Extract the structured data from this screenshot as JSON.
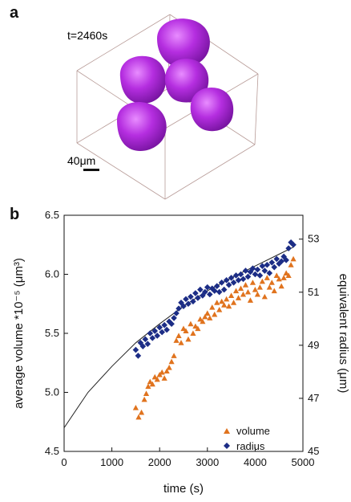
{
  "panel_a": {
    "letter": "a",
    "time_label": "t=2460s",
    "scale_label": "40μm",
    "cell_color": "#a21fd0"
  },
  "panel_b": {
    "letter": "b"
  },
  "chart_data": {
    "type": "scatter",
    "title": "",
    "xlabel": "time (s)",
    "ylabel_left": "average volume *10⁻⁵ (μm³)",
    "ylabel_right": "equivalent radius (μm)",
    "xlim": [
      0,
      5000
    ],
    "x_ticks": [
      0,
      1000,
      2000,
      3000,
      4000,
      5000
    ],
    "ylim_left": [
      4.5,
      6.5
    ],
    "y_ticks_left": [
      "4.5",
      "5.0",
      "5.5",
      "6.0",
      "6.5"
    ],
    "ylim_right": [
      45,
      53.9
    ],
    "y_ticks_right": [
      45,
      47,
      49,
      51,
      53
    ],
    "grid": false,
    "legend_position": "bottom-right",
    "series": [
      {
        "name": "volume",
        "marker": "triangle",
        "color": "#e0731e",
        "axis": "left",
        "x": [
          1500,
          1560,
          1620,
          1680,
          1720,
          1760,
          1800,
          1850,
          1900,
          1950,
          2000,
          2050,
          2100,
          2150,
          2200,
          2250,
          2300,
          2350,
          2400,
          2450,
          2500,
          2550,
          2600,
          2650,
          2700,
          2750,
          2800,
          2850,
          2900,
          2950,
          3000,
          3050,
          3100,
          3150,
          3200,
          3250,
          3300,
          3350,
          3400,
          3450,
          3500,
          3550,
          3600,
          3650,
          3700,
          3750,
          3800,
          3850,
          3900,
          3950,
          4000,
          4050,
          4100,
          4150,
          4200,
          4250,
          4300,
          4350,
          4400,
          4450,
          4500,
          4550,
          4600,
          4650,
          4700,
          4750,
          4800
        ],
        "y": [
          4.87,
          4.79,
          4.83,
          4.94,
          4.99,
          5.05,
          5.09,
          5.07,
          5.13,
          5.11,
          5.15,
          5.17,
          5.12,
          5.18,
          5.21,
          5.26,
          5.31,
          5.44,
          5.48,
          5.42,
          5.54,
          5.52,
          5.45,
          5.58,
          5.5,
          5.56,
          5.54,
          5.62,
          5.6,
          5.64,
          5.67,
          5.63,
          5.72,
          5.66,
          5.76,
          5.7,
          5.77,
          5.74,
          5.79,
          5.73,
          5.82,
          5.76,
          5.86,
          5.8,
          5.88,
          5.83,
          5.91,
          5.85,
          5.78,
          5.93,
          5.87,
          5.83,
          5.89,
          5.94,
          5.81,
          5.97,
          5.89,
          5.93,
          5.86,
          5.99,
          5.96,
          5.9,
          5.97,
          6.01,
          5.99,
          6.08,
          6.13
        ]
      },
      {
        "name": "radius",
        "marker": "diamond",
        "color": "#1c2d86",
        "axis": "left",
        "x": [
          1500,
          1550,
          1600,
          1650,
          1700,
          1750,
          1800,
          1850,
          1900,
          1950,
          2000,
          2050,
          2100,
          2150,
          2200,
          2250,
          2300,
          2350,
          2400,
          2450,
          2500,
          2550,
          2600,
          2650,
          2700,
          2750,
          2800,
          2850,
          2900,
          2950,
          3000,
          3050,
          3100,
          3150,
          3200,
          3250,
          3300,
          3350,
          3400,
          3450,
          3500,
          3550,
          3600,
          3650,
          3700,
          3750,
          3800,
          3850,
          3900,
          3950,
          4000,
          4050,
          4100,
          4150,
          4200,
          4250,
          4300,
          4350,
          4400,
          4450,
          4500,
          4550,
          4600,
          4650,
          4700,
          4750,
          4800
        ],
        "y": [
          5.36,
          5.31,
          5.42,
          5.39,
          5.45,
          5.41,
          5.5,
          5.46,
          5.52,
          5.48,
          5.55,
          5.51,
          5.57,
          5.53,
          5.6,
          5.58,
          5.63,
          5.67,
          5.71,
          5.76,
          5.73,
          5.79,
          5.75,
          5.81,
          5.77,
          5.84,
          5.8,
          5.87,
          5.82,
          5.85,
          5.89,
          5.83,
          5.88,
          5.86,
          5.9,
          5.85,
          5.93,
          5.87,
          5.95,
          5.91,
          5.97,
          5.93,
          5.99,
          5.95,
          6.0,
          5.96,
          6.03,
          5.98,
          6.02,
          6.05,
          6.0,
          6.04,
          5.99,
          6.07,
          6.03,
          6.08,
          6.01,
          6.1,
          6.06,
          6.13,
          6.09,
          6.11,
          6.15,
          6.12,
          6.22,
          6.27,
          6.25
        ]
      },
      {
        "name": "",
        "marker": "line",
        "color": "#222222",
        "axis": "left",
        "x": [
          0,
          500,
          1000,
          1500,
          2000,
          2500,
          3000,
          3500,
          4000,
          4500,
          4800
        ],
        "y": [
          4.7,
          5.0,
          5.22,
          5.42,
          5.58,
          5.73,
          5.86,
          5.97,
          6.07,
          6.17,
          6.23
        ]
      }
    ]
  }
}
